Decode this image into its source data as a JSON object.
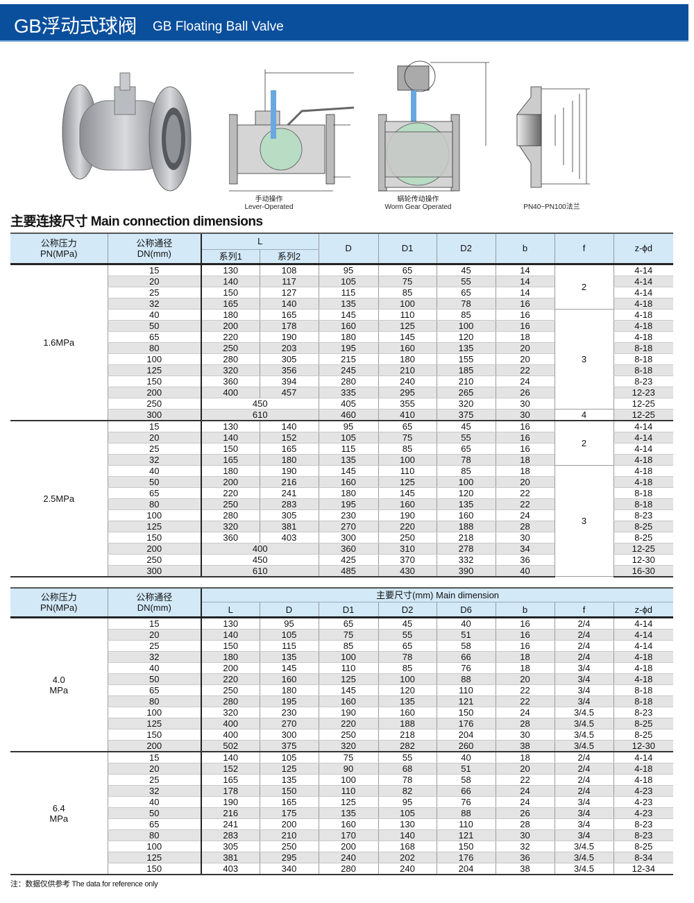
{
  "header": {
    "title_zh": "GB浮动式球阀",
    "title_en": "GB Floating Ball Valve",
    "brand_color": "#0a4f9c"
  },
  "figures": {
    "lever": {
      "caption_zh": "手动操作",
      "caption_en": "Lever-Operated"
    },
    "worm": {
      "caption_zh": "蜗轮传动操作",
      "caption_en": "Worm Gear Operated"
    },
    "flange": {
      "caption": "PN40~PN100法兰"
    }
  },
  "section_title": "主要连接尺寸 Main connection dimensions",
  "table1": {
    "headers": {
      "pn": "公称压力\nPN(MPa)",
      "dn": "公称通径\nDN(mm)",
      "L": "L",
      "L1": "系列1",
      "L2": "系列2",
      "D": "D",
      "D1": "D1",
      "D2": "D2",
      "b": "b",
      "f": "f",
      "z": "z-ϕd"
    },
    "groups": [
      {
        "pn": "1.6MPa",
        "f": [
          {
            "value": "2",
            "rows": 4
          },
          {
            "value": "3",
            "rows": 9
          },
          {
            "value": "4",
            "rows": 1
          }
        ],
        "rows": [
          [
            "15",
            [
              "130",
              "108"
            ],
            "95",
            "65",
            "45",
            "14",
            "4-14"
          ],
          [
            "20",
            [
              "140",
              "117"
            ],
            "105",
            "75",
            "55",
            "14",
            "4-14"
          ],
          [
            "25",
            [
              "150",
              "127"
            ],
            "115",
            "85",
            "65",
            "14",
            "4-14"
          ],
          [
            "32",
            [
              "165",
              "140"
            ],
            "135",
            "100",
            "78",
            "16",
            "4-18"
          ],
          [
            "40",
            [
              "180",
              "165"
            ],
            "145",
            "110",
            "85",
            "16",
            "4-18"
          ],
          [
            "50",
            [
              "200",
              "178"
            ],
            "160",
            "125",
            "100",
            "16",
            "4-18"
          ],
          [
            "65",
            [
              "220",
              "190"
            ],
            "180",
            "145",
            "120",
            "18",
            "4-18"
          ],
          [
            "80",
            [
              "250",
              "203"
            ],
            "195",
            "160",
            "135",
            "20",
            "8-18"
          ],
          [
            "100",
            [
              "280",
              "305"
            ],
            "215",
            "180",
            "155",
            "20",
            "8-18"
          ],
          [
            "125",
            [
              "320",
              "356"
            ],
            "245",
            "210",
            "185",
            "22",
            "8-18"
          ],
          [
            "150",
            [
              "360",
              "394"
            ],
            "280",
            "240",
            "210",
            "24",
            "8-23"
          ],
          [
            "200",
            [
              "400",
              "457"
            ],
            "335",
            "295",
            "265",
            "26",
            "12-23"
          ],
          [
            "250",
            "450",
            "405",
            "355",
            "320",
            "30",
            "12-25"
          ],
          [
            "300",
            "610",
            "460",
            "410",
            "375",
            "30",
            "12-25"
          ]
        ]
      },
      {
        "pn": "2.5MPa",
        "f": [
          {
            "value": "2",
            "rows": 4
          },
          {
            "value": "3",
            "rows": 10
          }
        ],
        "rows": [
          [
            "15",
            [
              "130",
              "140"
            ],
            "95",
            "65",
            "45",
            "16",
            "4-14"
          ],
          [
            "20",
            [
              "140",
              "152"
            ],
            "105",
            "75",
            "55",
            "16",
            "4-14"
          ],
          [
            "25",
            [
              "150",
              "165"
            ],
            "115",
            "85",
            "65",
            "16",
            "4-14"
          ],
          [
            "32",
            [
              "165",
              "180"
            ],
            "135",
            "100",
            "78",
            "18",
            "4-18"
          ],
          [
            "40",
            [
              "180",
              "190"
            ],
            "145",
            "110",
            "85",
            "18",
            "4-18"
          ],
          [
            "50",
            [
              "200",
              "216"
            ],
            "160",
            "125",
            "100",
            "20",
            "4-18"
          ],
          [
            "65",
            [
              "220",
              "241"
            ],
            "180",
            "145",
            "120",
            "22",
            "8-18"
          ],
          [
            "80",
            [
              "250",
              "283"
            ],
            "195",
            "160",
            "135",
            "22",
            "8-18"
          ],
          [
            "100",
            [
              "280",
              "305"
            ],
            "230",
            "190",
            "160",
            "24",
            "8-23"
          ],
          [
            "125",
            [
              "320",
              "381"
            ],
            "270",
            "220",
            "188",
            "28",
            "8-25"
          ],
          [
            "150",
            [
              "360",
              "403"
            ],
            "300",
            "250",
            "218",
            "30",
            "8-25"
          ],
          [
            "200",
            "400",
            "360",
            "310",
            "278",
            "34",
            "12-25"
          ],
          [
            "250",
            "450",
            "425",
            "370",
            "332",
            "36",
            "12-30"
          ],
          [
            "300",
            "610",
            "485",
            "430",
            "390",
            "40",
            "16-30"
          ]
        ]
      }
    ]
  },
  "table2": {
    "headers": {
      "pn": "公称压力\nPN(MPa)",
      "dn": "公称通径\nDN(mm)",
      "main": "主要尺寸(mm) Main dimension",
      "cols": [
        "L",
        "D",
        "D1",
        "D2",
        "D6",
        "b",
        "f",
        "z-ϕd"
      ]
    },
    "groups": [
      {
        "pn": "4.0\nMPa",
        "rows": [
          [
            "15",
            "130",
            "95",
            "65",
            "45",
            "40",
            "16",
            "2/4",
            "4-14"
          ],
          [
            "20",
            "140",
            "105",
            "75",
            "55",
            "51",
            "16",
            "2/4",
            "4-14"
          ],
          [
            "25",
            "150",
            "115",
            "85",
            "65",
            "58",
            "16",
            "2/4",
            "4-14"
          ],
          [
            "32",
            "180",
            "135",
            "100",
            "78",
            "66",
            "18",
            "2/4",
            "4-18"
          ],
          [
            "40",
            "200",
            "145",
            "110",
            "85",
            "76",
            "18",
            "3/4",
            "4-18"
          ],
          [
            "50",
            "220",
            "160",
            "125",
            "100",
            "88",
            "20",
            "3/4",
            "4-18"
          ],
          [
            "65",
            "250",
            "180",
            "145",
            "120",
            "110",
            "22",
            "3/4",
            "8-18"
          ],
          [
            "80",
            "280",
            "195",
            "160",
            "135",
            "121",
            "22",
            "3/4",
            "8-18"
          ],
          [
            "100",
            "320",
            "230",
            "190",
            "160",
            "150",
            "24",
            "3/4.5",
            "8-23"
          ],
          [
            "125",
            "400",
            "270",
            "220",
            "188",
            "176",
            "28",
            "3/4.5",
            "8-25"
          ],
          [
            "150",
            "400",
            "300",
            "250",
            "218",
            "204",
            "30",
            "3/4.5",
            "8-25"
          ],
          [
            "200",
            "502",
            "375",
            "320",
            "282",
            "260",
            "38",
            "3/4.5",
            "12-30"
          ]
        ]
      },
      {
        "pn": "6.4\nMPa",
        "rows": [
          [
            "15",
            "140",
            "105",
            "75",
            "55",
            "40",
            "18",
            "2/4",
            "4-14"
          ],
          [
            "20",
            "152",
            "125",
            "90",
            "68",
            "51",
            "20",
            "2/4",
            "4-18"
          ],
          [
            "25",
            "165",
            "135",
            "100",
            "78",
            "58",
            "22",
            "2/4",
            "4-18"
          ],
          [
            "32",
            "178",
            "150",
            "110",
            "82",
            "66",
            "24",
            "2/4",
            "4-23"
          ],
          [
            "40",
            "190",
            "165",
            "125",
            "95",
            "76",
            "24",
            "3/4",
            "4-23"
          ],
          [
            "50",
            "216",
            "175",
            "135",
            "105",
            "88",
            "26",
            "3/4",
            "4-23"
          ],
          [
            "65",
            "241",
            "200",
            "160",
            "130",
            "110",
            "28",
            "3/4",
            "8-23"
          ],
          [
            "80",
            "283",
            "210",
            "170",
            "140",
            "121",
            "30",
            "3/4",
            "8-23"
          ],
          [
            "100",
            "305",
            "250",
            "200",
            "168",
            "150",
            "32",
            "3/4.5",
            "8-25"
          ],
          [
            "125",
            "381",
            "295",
            "240",
            "202",
            "176",
            "36",
            "3/4.5",
            "8-34"
          ],
          [
            "150",
            "403",
            "340",
            "280",
            "240",
            "204",
            "38",
            "3/4.5",
            "12-34"
          ]
        ]
      }
    ]
  },
  "note": "注：数据仅供参考 The data for reference only"
}
